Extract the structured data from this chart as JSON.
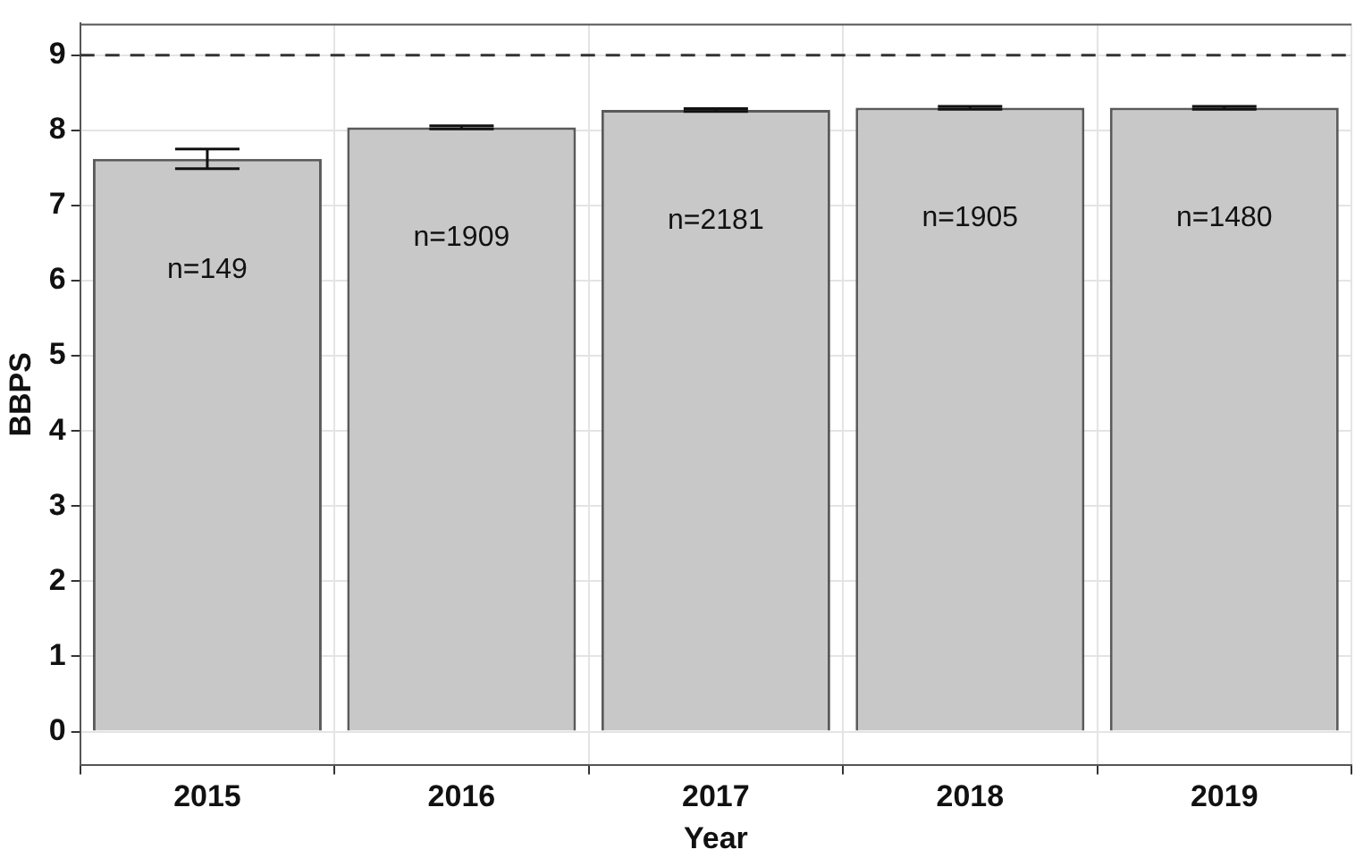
{
  "chart_data": {
    "type": "bar",
    "xlabel": "Year",
    "ylabel": "BBPS",
    "categories": [
      "2015",
      "2016",
      "2017",
      "2018",
      "2019"
    ],
    "series": [
      {
        "color": "#c8c8c8",
        "values": [
          7.62,
          8.04,
          8.27,
          8.3,
          8.3
        ],
        "errors": [
          0.13,
          0.02,
          0.02,
          0.02,
          0.02
        ]
      }
    ],
    "ylim": [
      -0.45,
      9.42
    ],
    "yticks": [
      0,
      1,
      2,
      3,
      4,
      5,
      6,
      7,
      8,
      9
    ],
    "grid": true,
    "legend": false,
    "ref_lines": [
      {
        "axis": "y",
        "value": 9,
        "line_style": "dashed",
        "color": "#333333"
      }
    ],
    "annotations": [
      "n=149",
      "n=1909",
      "n=2181",
      "n=1905",
      "n=1480"
    ]
  }
}
